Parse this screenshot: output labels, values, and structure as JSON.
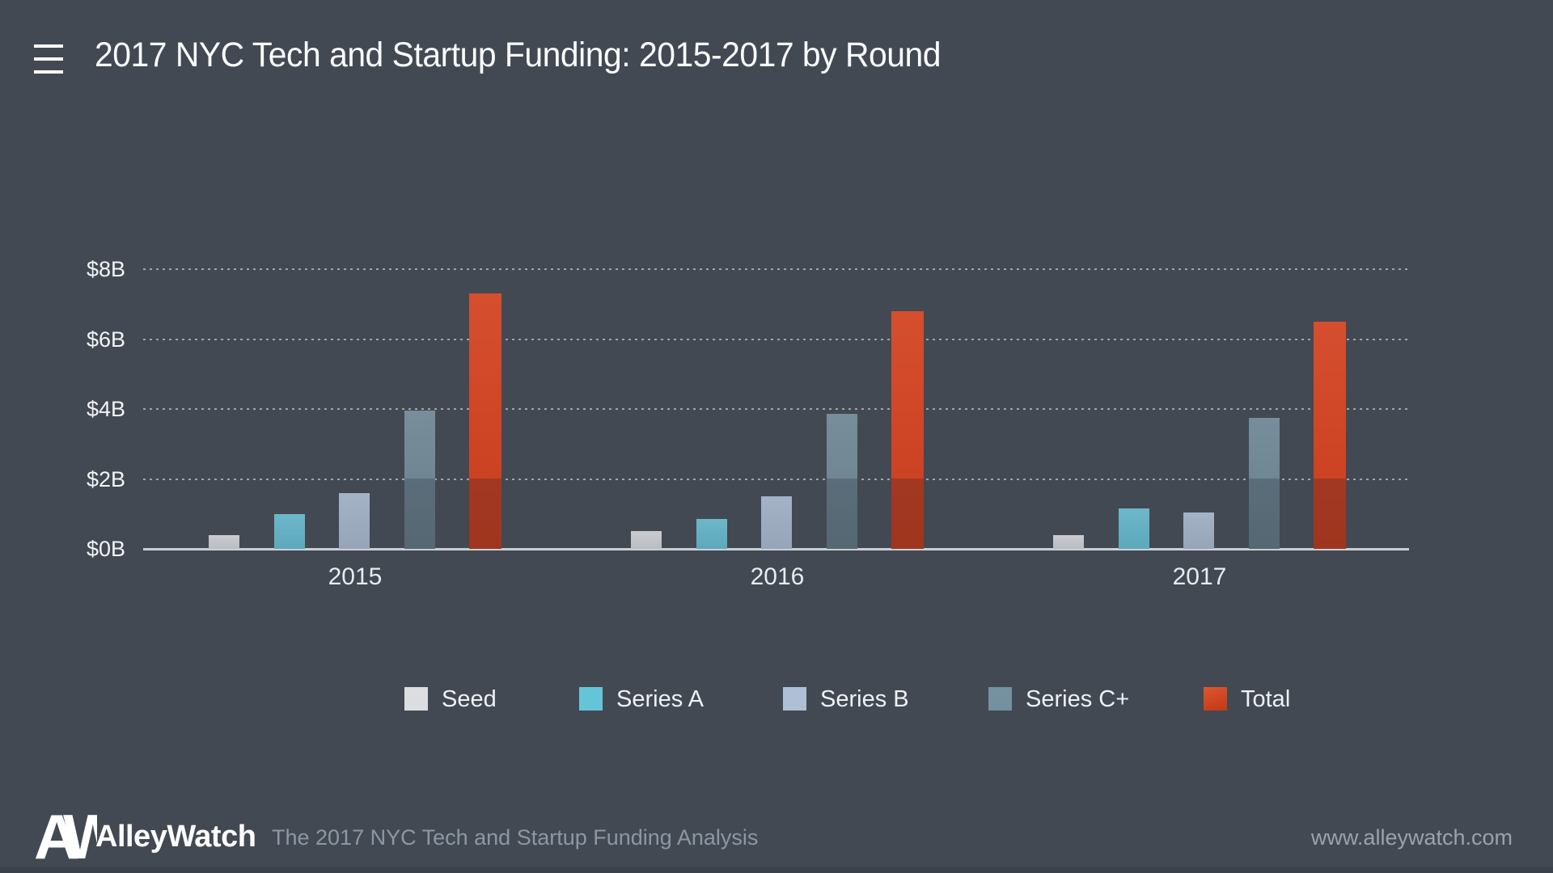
{
  "header": {
    "title": "2017 NYC Tech and Startup Funding: 2015-2017 by Round"
  },
  "icons": {
    "menu": "hamburger-menu-icon"
  },
  "chart_data": {
    "type": "bar",
    "title": "2017 NYC Tech and Startup Funding: 2015-2017 by Round",
    "categories": [
      "2015",
      "2016",
      "2017"
    ],
    "series": [
      {
        "name": "Seed",
        "color": "#dcdde1",
        "values": [
          0.4,
          0.5,
          0.4
        ]
      },
      {
        "name": "Series A",
        "color": "#66c4d9",
        "values": [
          1.0,
          0.85,
          1.15
        ]
      },
      {
        "name": "Series B",
        "color": "#aebfd6",
        "values": [
          1.6,
          1.5,
          1.05
        ]
      },
      {
        "name": "Series C+",
        "color": "#75909f",
        "values": [
          3.95,
          3.85,
          3.75
        ]
      },
      {
        "name": "Total",
        "color": "#d2411f",
        "values": [
          7.3,
          6.8,
          6.5
        ]
      }
    ],
    "y_ticks": [
      "$0B",
      "$2B",
      "$4B",
      "$6B",
      "$8B"
    ],
    "y_tick_values": [
      0,
      2,
      4,
      6,
      8
    ],
    "ylim": [
      0,
      8
    ],
    "xlabel": "",
    "ylabel": "",
    "y_unit": "billions USD",
    "grid": "horizontal dashed",
    "legend_position": "bottom"
  },
  "footer": {
    "logo_monogram": "AW",
    "brand": "AlleyWatch",
    "tagline": "The 2017 NYC Tech and Startup Funding Analysis",
    "url": "www.alleywatch.com"
  },
  "colors": {
    "background": "#424952",
    "title_text": "#fbfcfd",
    "axis_label": "#f2f4f7",
    "gridline": "rgba(255,255,255,0.5)",
    "baseline": "#c9ced5",
    "legend_text": "#eef1f5",
    "tagline_text": "#8d97a4",
    "url_text": "#99a2ad",
    "bottom_strip": "#3c424b",
    "total_accent": "#d2411f"
  }
}
